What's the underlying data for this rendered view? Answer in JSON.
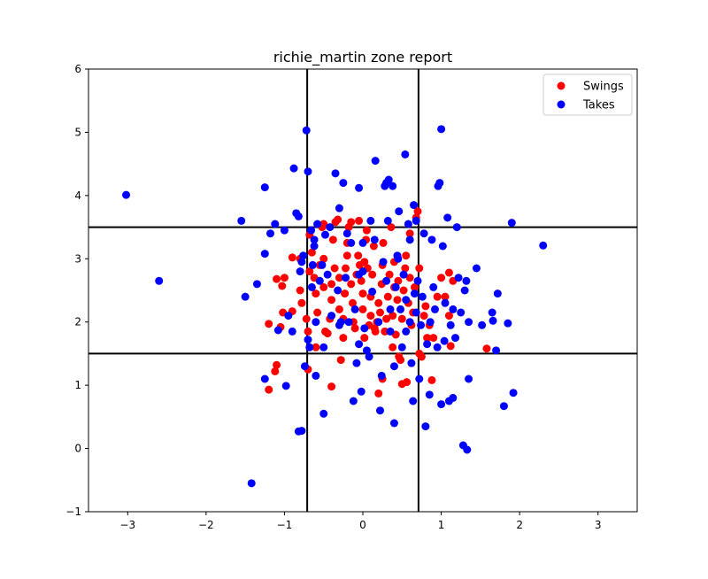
{
  "chart_data": {
    "type": "scatter",
    "title": "richie_martin zone report",
    "xlabel": "",
    "ylabel": "",
    "xlim": [
      -3.5,
      3.5
    ],
    "ylim": [
      -1,
      6
    ],
    "xticks": [
      -3,
      -2,
      -1,
      0,
      1,
      2,
      3
    ],
    "yticks": [
      -1,
      0,
      1,
      2,
      3,
      4,
      5,
      6
    ],
    "grid": false,
    "legend_position": "top-right",
    "strike_zone": {
      "x": [
        -0.71,
        0.71
      ],
      "y": [
        1.5,
        3.5
      ]
    },
    "series": [
      {
        "name": "Swings",
        "color": "#ff0000",
        "points": [
          [
            -1.2,
            0.93
          ],
          [
            -1.12,
            1.22
          ],
          [
            -1.1,
            1.32
          ],
          [
            -1.05,
            1.92
          ],
          [
            -1.2,
            1.97
          ],
          [
            -1.02,
            2.15
          ],
          [
            -1.03,
            2.57
          ],
          [
            -1.0,
            2.7
          ],
          [
            -1.1,
            2.68
          ],
          [
            -0.9,
            2.17
          ],
          [
            -0.8,
            2.5
          ],
          [
            -0.8,
            3.0
          ],
          [
            -0.78,
            2.3
          ],
          [
            -0.72,
            2.05
          ],
          [
            -0.7,
            1.85
          ],
          [
            -0.68,
            2.8
          ],
          [
            -0.68,
            3.38
          ],
          [
            -0.65,
            3.1
          ],
          [
            -0.62,
            2.7
          ],
          [
            -0.6,
            2.45
          ],
          [
            -0.6,
            1.6
          ],
          [
            -0.58,
            2.15
          ],
          [
            -0.55,
            2.9
          ],
          [
            -0.52,
            3.5
          ],
          [
            -0.5,
            3.55
          ],
          [
            -0.5,
            3.0
          ],
          [
            -0.5,
            2.55
          ],
          [
            -0.48,
            1.85
          ],
          [
            -0.45,
            1.82
          ],
          [
            -0.42,
            2.05
          ],
          [
            -0.4,
            2.35
          ],
          [
            -0.4,
            2.6
          ],
          [
            -0.38,
            3.3
          ],
          [
            -0.36,
            2.85
          ],
          [
            -0.35,
            3.58
          ],
          [
            -0.32,
            3.62
          ],
          [
            -0.3,
            2.7
          ],
          [
            -0.3,
            2.2
          ],
          [
            -0.28,
            1.4
          ],
          [
            -0.25,
            1.75
          ],
          [
            -0.25,
            2.05
          ],
          [
            -0.23,
            2.45
          ],
          [
            -0.22,
            2.85
          ],
          [
            -0.2,
            3.05
          ],
          [
            -0.2,
            3.25
          ],
          [
            -0.18,
            3.5
          ],
          [
            -0.15,
            3.58
          ],
          [
            -0.15,
            2.6
          ],
          [
            -0.13,
            2.3
          ],
          [
            -0.12,
            2.0
          ],
          [
            -0.1,
            1.9
          ],
          [
            -0.08,
            2.75
          ],
          [
            -0.06,
            3.05
          ],
          [
            -0.05,
            3.6
          ],
          [
            -0.04,
            2.9
          ],
          [
            -0.02,
            2.65
          ],
          [
            0.0,
            2.2
          ],
          [
            0.0,
            2.45
          ],
          [
            0.02,
            1.75
          ],
          [
            0.02,
            2.95
          ],
          [
            0.04,
            3.3
          ],
          [
            0.05,
            3.45
          ],
          [
            0.06,
            2.85
          ],
          [
            0.08,
            1.95
          ],
          [
            0.1,
            2.1
          ],
          [
            0.1,
            2.4
          ],
          [
            0.12,
            2.75
          ],
          [
            0.14,
            3.2
          ],
          [
            0.15,
            1.9
          ],
          [
            0.16,
            1.85
          ],
          [
            0.18,
            2.0
          ],
          [
            0.2,
            2.3
          ],
          [
            0.22,
            2.15
          ],
          [
            0.24,
            2.6
          ],
          [
            0.25,
            2.9
          ],
          [
            0.26,
            3.25
          ],
          [
            0.28,
            1.85
          ],
          [
            0.3,
            2.05
          ],
          [
            0.32,
            2.4
          ],
          [
            0.34,
            2.75
          ],
          [
            0.36,
            3.5
          ],
          [
            0.38,
            1.6
          ],
          [
            0.38,
            2.1
          ],
          [
            0.4,
            2.55
          ],
          [
            0.4,
            2.95
          ],
          [
            0.42,
            1.8
          ],
          [
            0.44,
            2.35
          ],
          [
            0.45,
            2.65
          ],
          [
            0.46,
            1.45
          ],
          [
            0.48,
            1.4
          ],
          [
            0.5,
            1.02
          ],
          [
            0.5,
            2.05
          ],
          [
            0.52,
            2.5
          ],
          [
            0.54,
            2.85
          ],
          [
            0.55,
            3.05
          ],
          [
            0.56,
            1.05
          ],
          [
            0.58,
            2.3
          ],
          [
            0.6,
            2.7
          ],
          [
            0.6,
            3.4
          ],
          [
            0.62,
            1.95
          ],
          [
            0.64,
            2.15
          ],
          [
            0.66,
            2.55
          ],
          [
            0.68,
            3.65
          ],
          [
            0.7,
            3.75
          ],
          [
            0.72,
            2.85
          ],
          [
            0.72,
            1.5
          ],
          [
            0.75,
            1.45
          ],
          [
            0.78,
            2.1
          ],
          [
            0.8,
            2.25
          ],
          [
            0.82,
            1.75
          ],
          [
            0.85,
            1.95
          ],
          [
            0.88,
            1.08
          ],
          [
            0.9,
            1.75
          ],
          [
            0.95,
            2.4
          ],
          [
            1.0,
            2.7
          ],
          [
            1.05,
            2.4
          ],
          [
            1.1,
            2.1
          ],
          [
            1.1,
            2.78
          ],
          [
            1.12,
            1.62
          ],
          [
            1.15,
            2.65
          ],
          [
            1.58,
            1.58
          ],
          [
            0.2,
            0.87
          ],
          [
            -0.4,
            0.98
          ],
          [
            -0.7,
            1.25
          ],
          [
            0.25,
            1.1
          ],
          [
            -0.9,
            3.02
          ]
        ]
      },
      {
        "name": "Takes",
        "color": "#0000ff",
        "points": [
          [
            -3.02,
            4.01
          ],
          [
            -2.6,
            2.65
          ],
          [
            -1.5,
            2.4
          ],
          [
            -1.42,
            -0.55
          ],
          [
            -1.55,
            3.6
          ],
          [
            -1.35,
            2.6
          ],
          [
            -1.25,
            1.1
          ],
          [
            -1.25,
            3.08
          ],
          [
            -1.25,
            4.13
          ],
          [
            -1.18,
            3.4
          ],
          [
            -1.12,
            3.55
          ],
          [
            -1.08,
            1.87
          ],
          [
            -1.0,
            3.45
          ],
          [
            -0.98,
            0.99
          ],
          [
            -0.95,
            2.1
          ],
          [
            -0.9,
            1.85
          ],
          [
            -0.88,
            4.43
          ],
          [
            -0.85,
            3.72
          ],
          [
            -0.82,
            3.67
          ],
          [
            -0.82,
            0.27
          ],
          [
            -0.78,
            0.28
          ],
          [
            -0.8,
            2.8
          ],
          [
            -0.78,
            2.95
          ],
          [
            -0.76,
            3.05
          ],
          [
            -0.74,
            1.3
          ],
          [
            -0.72,
            5.03
          ],
          [
            -0.7,
            4.38
          ],
          [
            -0.7,
            1.72
          ],
          [
            -0.68,
            1.6
          ],
          [
            -0.66,
            3.45
          ],
          [
            -0.65,
            2.55
          ],
          [
            -0.64,
            2.9
          ],
          [
            -0.62,
            3.2
          ],
          [
            -0.62,
            3.3
          ],
          [
            -0.6,
            1.15
          ],
          [
            -0.58,
            3.55
          ],
          [
            -0.55,
            2.65
          ],
          [
            -0.52,
            2.9
          ],
          [
            -0.5,
            0.55
          ],
          [
            -0.5,
            1.6
          ],
          [
            -0.48,
            3.38
          ],
          [
            -0.42,
            3.5
          ],
          [
            -0.4,
            2.1
          ],
          [
            -0.35,
            4.35
          ],
          [
            -0.32,
            2.5
          ],
          [
            -0.3,
            3.8
          ],
          [
            -0.28,
            2.0
          ],
          [
            -0.25,
            4.2
          ],
          [
            -0.22,
            2.7
          ],
          [
            -0.18,
            2.0
          ],
          [
            -0.15,
            3.25
          ],
          [
            -0.12,
            0.75
          ],
          [
            -0.1,
            2.2
          ],
          [
            -0.08,
            1.35
          ],
          [
            -0.05,
            4.12
          ],
          [
            -0.05,
            2.75
          ],
          [
            -0.02,
            0.9
          ],
          [
            0.0,
            3.25
          ],
          [
            0.02,
            1.9
          ],
          [
            0.05,
            1.55
          ],
          [
            0.08,
            1.45
          ],
          [
            0.1,
            3.6
          ],
          [
            0.15,
            3.3
          ],
          [
            0.16,
            4.55
          ],
          [
            0.2,
            2.0
          ],
          [
            0.22,
            0.6
          ],
          [
            0.24,
            1.15
          ],
          [
            0.26,
            2.95
          ],
          [
            0.28,
            4.15
          ],
          [
            0.3,
            4.2
          ],
          [
            0.32,
            3.6
          ],
          [
            0.33,
            4.25
          ],
          [
            0.35,
            2.2
          ],
          [
            0.38,
            4.15
          ],
          [
            0.4,
            1.3
          ],
          [
            0.4,
            0.4
          ],
          [
            0.42,
            2.55
          ],
          [
            0.44,
            3.05
          ],
          [
            0.46,
            3.75
          ],
          [
            0.48,
            2.2
          ],
          [
            0.5,
            1.6
          ],
          [
            0.52,
            2.75
          ],
          [
            0.54,
            4.65
          ],
          [
            0.55,
            1.85
          ],
          [
            0.58,
            3.55
          ],
          [
            0.6,
            2.0
          ],
          [
            0.6,
            3.3
          ],
          [
            0.62,
            1.35
          ],
          [
            0.64,
            0.75
          ],
          [
            0.65,
            3.85
          ],
          [
            0.66,
            2.45
          ],
          [
            0.68,
            3.6
          ],
          [
            0.7,
            2.65
          ],
          [
            0.72,
            1.1
          ],
          [
            0.74,
            1.95
          ],
          [
            0.76,
            2.4
          ],
          [
            0.78,
            3.4
          ],
          [
            0.8,
            0.35
          ],
          [
            0.82,
            1.65
          ],
          [
            0.85,
            0.85
          ],
          [
            0.86,
            2.0
          ],
          [
            0.88,
            3.3
          ],
          [
            0.9,
            2.55
          ],
          [
            0.92,
            2.2
          ],
          [
            0.95,
            1.6
          ],
          [
            0.96,
            4.15
          ],
          [
            0.98,
            4.2
          ],
          [
            1.0,
            5.05
          ],
          [
            1.0,
            0.7
          ],
          [
            1.02,
            3.2
          ],
          [
            1.04,
            1.7
          ],
          [
            1.05,
            2.3
          ],
          [
            1.08,
            3.65
          ],
          [
            1.1,
            0.75
          ],
          [
            1.12,
            1.95
          ],
          [
            1.15,
            2.2
          ],
          [
            1.15,
            0.8
          ],
          [
            1.18,
            1.75
          ],
          [
            1.2,
            3.5
          ],
          [
            1.22,
            2.7
          ],
          [
            1.25,
            2.15
          ],
          [
            1.28,
            0.05
          ],
          [
            1.3,
            2.5
          ],
          [
            1.32,
            2.65
          ],
          [
            1.33,
            -0.02
          ],
          [
            1.35,
            2.0
          ],
          [
            1.35,
            1.1
          ],
          [
            1.45,
            2.85
          ],
          [
            1.52,
            1.95
          ],
          [
            1.65,
            2.15
          ],
          [
            1.66,
            2.02
          ],
          [
            1.7,
            1.55
          ],
          [
            1.72,
            2.45
          ],
          [
            1.8,
            0.67
          ],
          [
            1.85,
            1.98
          ],
          [
            1.9,
            3.57
          ],
          [
            1.92,
            0.88
          ],
          [
            2.3,
            3.21
          ],
          [
            -0.3,
            1.95
          ],
          [
            0.12,
            2.48
          ],
          [
            -0.45,
            2.75
          ],
          [
            0.35,
            1.85
          ],
          [
            0.55,
            2.35
          ],
          [
            -0.6,
            2.0
          ],
          [
            0.0,
            2.8
          ],
          [
            0.3,
            2.65
          ],
          [
            0.68,
            2.15
          ],
          [
            -0.05,
            1.65
          ],
          [
            0.45,
            3.0
          ],
          [
            -0.2,
            3.4
          ]
        ]
      }
    ]
  }
}
